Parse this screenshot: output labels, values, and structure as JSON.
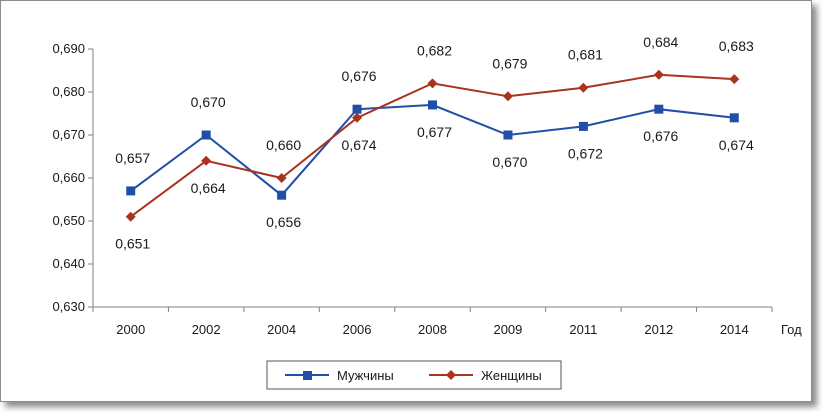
{
  "chart_data": {
    "type": "line",
    "categories": [
      "2000",
      "2002",
      "2004",
      "2006",
      "2008",
      "2009",
      "2011",
      "2012",
      "2014"
    ],
    "xlabel": "Год",
    "ylabel": "",
    "ylim": [
      0.63,
      0.69
    ],
    "yticks": [
      "0,630",
      "0,640",
      "0,650",
      "0,660",
      "0,670",
      "0,680",
      "0,690"
    ],
    "series": [
      {
        "name": "Мужчины",
        "color": "#1f4fa8",
        "marker": "square",
        "values": [
          0.657,
          0.67,
          0.656,
          0.676,
          0.677,
          0.67,
          0.672,
          0.676,
          0.674
        ],
        "labels": [
          "0,657",
          "0,670",
          "0,656",
          "0,676",
          "0,677",
          "0,670",
          "0,672",
          "0,676",
          "0,674"
        ]
      },
      {
        "name": "Женщины",
        "color": "#a8331f",
        "marker": "diamond",
        "values": [
          0.651,
          0.664,
          0.66,
          0.674,
          0.682,
          0.679,
          0.681,
          0.684,
          0.683
        ],
        "labels": [
          "0,651",
          "0,664",
          "0,660",
          "0,674",
          "0,682",
          "0,679",
          "0,681",
          "0,684",
          "0,683"
        ]
      }
    ],
    "grid": false,
    "legend": "bottom"
  }
}
